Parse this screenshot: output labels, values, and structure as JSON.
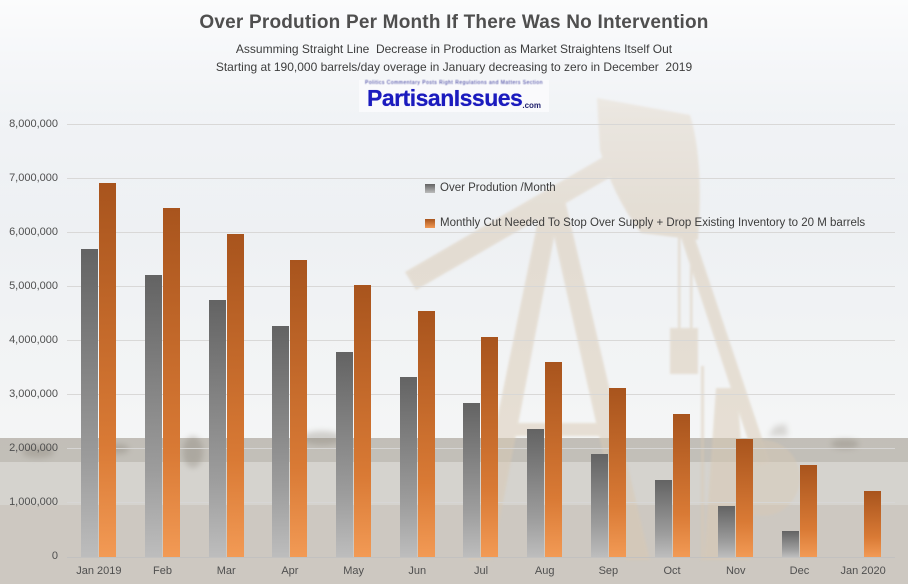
{
  "header": {
    "title": "Over Prodution Per Month If There Was No Intervention",
    "subtitle1": "Assumming Straight Line  Decrease in Production as Market Straightens Itself Out",
    "subtitle2": "Starting at 190,000 barrels/day overage in January decreasing to zero in December  2019"
  },
  "logo": {
    "wordcloud": "Politics Commentary Posts Right Regulations and Matters Section",
    "name": "PartisanIssues",
    "tld": ".com"
  },
  "chart_data": {
    "type": "bar",
    "categories": [
      "Jan 2019",
      "Feb",
      "Mar",
      "Apr",
      "May",
      "Jun",
      "Jul",
      "Aug",
      "Sep",
      "Oct",
      "Nov",
      "Dec",
      "Jan 2020"
    ],
    "series": [
      {
        "name": "Over Prodution /Month",
        "legend_color": "#8f8f8f",
        "color_top": "#636363",
        "color_mid": "#9d9d9d",
        "color_bottom": "#bdbdbd",
        "values": [
          5700000,
          5225000,
          4750000,
          4275000,
          3800000,
          3325000,
          2850000,
          2375000,
          1900000,
          1425000,
          950000,
          475000,
          0
        ]
      },
      {
        "name": "Monthly Cut Needed To Stop Over Supply + Drop Existing Inventory to 20 M barrels",
        "legend_color": "#c25f1e",
        "color_top": "#a8541d",
        "color_mid": "#d97a35",
        "color_bottom": "#f29a55",
        "values": [
          6930769,
          6455769,
          5980769,
          5505769,
          5030769,
          4555769,
          4080769,
          3605769,
          3130769,
          2655769,
          2180769,
          1705769,
          1230769
        ]
      }
    ],
    "ylim": [
      0,
      8000000
    ],
    "ytick_step": 1000000,
    "ytick_labels": [
      "0",
      "1,000,000",
      "2,000,000",
      "3,000,000",
      "4,000,000",
      "5,000,000",
      "6,000,000",
      "7,000,000",
      "8,000,000"
    ],
    "grid": true,
    "legend_position": "inside-top-center"
  }
}
